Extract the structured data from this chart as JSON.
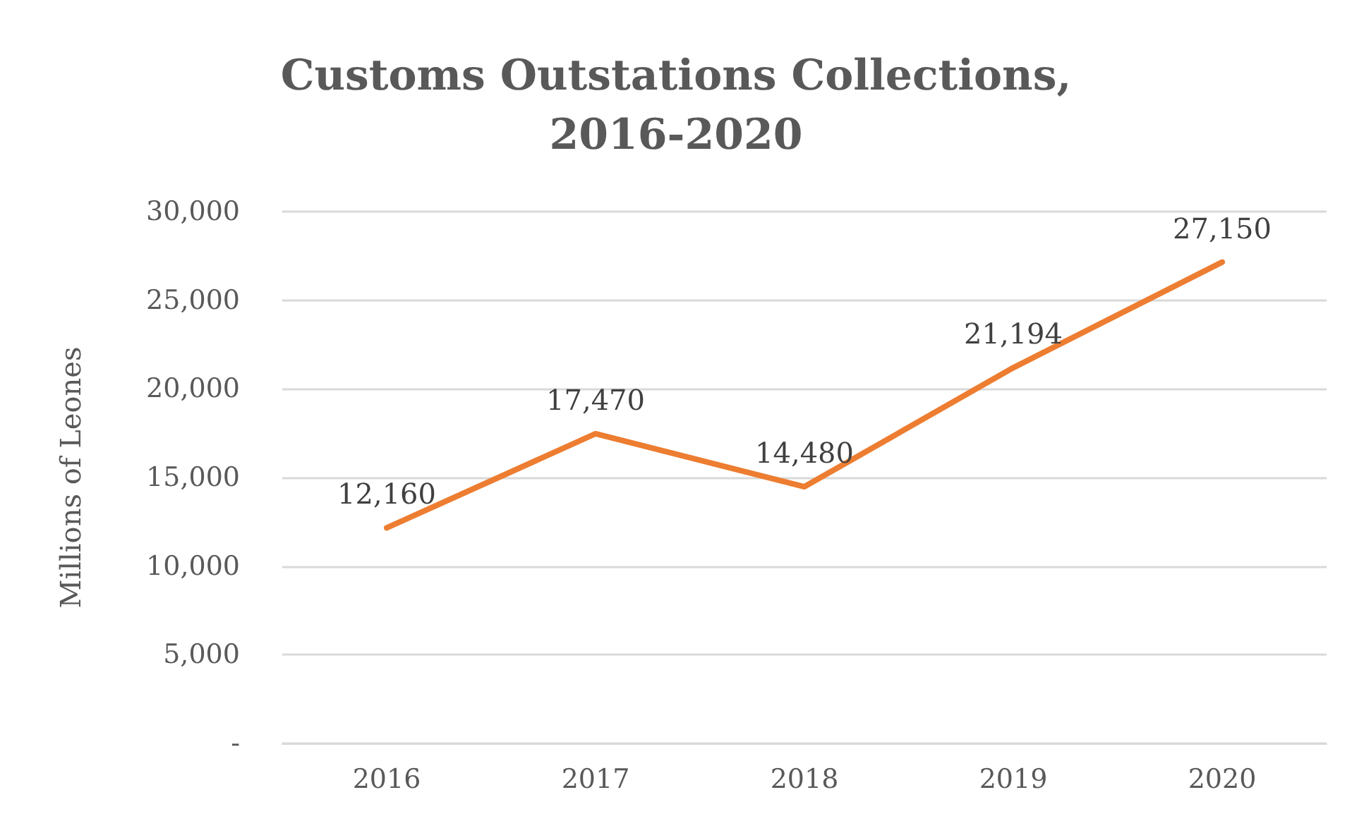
{
  "chart_data": {
    "type": "line",
    "title": "Customs Outstations Collections,\n2016-2020",
    "ylabel": "Millions of Leones",
    "categories": [
      "2016",
      "2017",
      "2018",
      "2019",
      "2020"
    ],
    "series": [
      {
        "color": "#ed7d31",
        "values": [
          12160,
          17470,
          14480,
          21194,
          27150
        ],
        "value_labels": [
          "12,160",
          "17,470",
          "14,480",
          "21,194",
          "27,150"
        ]
      }
    ],
    "ylim": [
      0,
      30000
    ],
    "yticks": [
      {
        "value": 0,
        "label": "-"
      },
      {
        "value": 5000,
        "label": "5,000"
      },
      {
        "value": 10000,
        "label": "10,000"
      },
      {
        "value": 15000,
        "label": "15,000"
      },
      {
        "value": 20000,
        "label": "20,000"
      },
      {
        "value": 25000,
        "label": "25,000"
      },
      {
        "value": 30000,
        "label": "30,000"
      }
    ],
    "grid": "y",
    "marker": "none",
    "line_style": "solid"
  }
}
